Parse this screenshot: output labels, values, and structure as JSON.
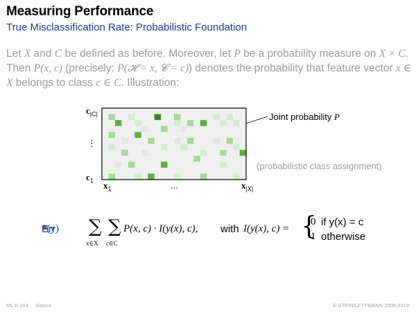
{
  "header": {
    "title": "Measuring Performance",
    "subtitle": "True Misclassification Rate: Probabilistic Foundation"
  },
  "intro": {
    "t1": "Let ",
    "X": "X",
    "t2": " and ",
    "C": "C",
    "t3": " be defined as before. Moreover, let ",
    "P": "P",
    "t4": " be a probability measure on ",
    "XxC": "X × C",
    "t5": ". Then ",
    "Pxc": "P(x, c)",
    "t6": " (precisely: ",
    "Pprecise": "P(𝓗 = x, 𝓒 = c)",
    "t7": ") denotes the probability that feature vector ",
    "xinX": "x ∈ X",
    "t8": " belongs to class ",
    "cinC": "c ∈ C",
    "t9": ". Illustration:"
  },
  "illustration": {
    "y_top": "c",
    "y_top_sub": "|C|",
    "y_dots": "⋮",
    "y_bottom": "c",
    "y_bottom_sub": "1",
    "x_left": "x",
    "x_left_sub": "1",
    "x_dots": "...",
    "x_right": "x",
    "x_right_sub": "|X|",
    "joint_label": "Joint probability ",
    "joint_var": "P",
    "assign_label": "(probabilistic class assignment)",
    "colors": {
      "strong": "#2f8a1f",
      "medium": "#5cb043",
      "light": "#a9d59a",
      "pale": "#d6ead0",
      "grey": "#e4e4e4",
      "faint": "#f0f0f0"
    },
    "cells": [
      "wwwwwwwwwwwwwwwwwwwwww",
      "wlwwpwwwAwwlwwwwwpwpww",
      "wwMwwpwwwwwpwlwMwwpwpw",
      "wwwwwwgwwlwwgwwwwwwwww",
      "wlwwwMwwwwwwwwwwwwwwww",
      "wwwgwwwlwwwgwlwwwgwlww",
      "wpwwwwwwwpwwpwwwwwwwpw",
      "wwwlwwgwwwwwwwwpwwlwwM",
      "wwwwwwwwwwwwwwlwwwwwww",
      "wwgwlwwwwMwwwwwwwwpwww",
      "wwwwwwwwwwwwwwwwwwwwww",
      "wlwwwpwMwwwpwwwlwwwwpw"
    ]
  },
  "formula": {
    "err": "Err",
    "err_args": "*(y)",
    "eq": " = ",
    "sum": "∑",
    "sum1_idx": "x∈X",
    "sum2_idx": "c∈C",
    "body": "P(x, c) · I(y(x), c),",
    "with": "with ",
    "I_lhs": "I(y(x), c) =",
    "brace": "{",
    "case1_val": "0",
    "case1_cond": "if y(x) = c",
    "case2_val": "1",
    "case2_cond": "otherwise"
  },
  "footer": {
    "course": "ML:II-104",
    "section": "Basics",
    "copyright": "© STEIN/LETTMANN 2005-2018"
  }
}
